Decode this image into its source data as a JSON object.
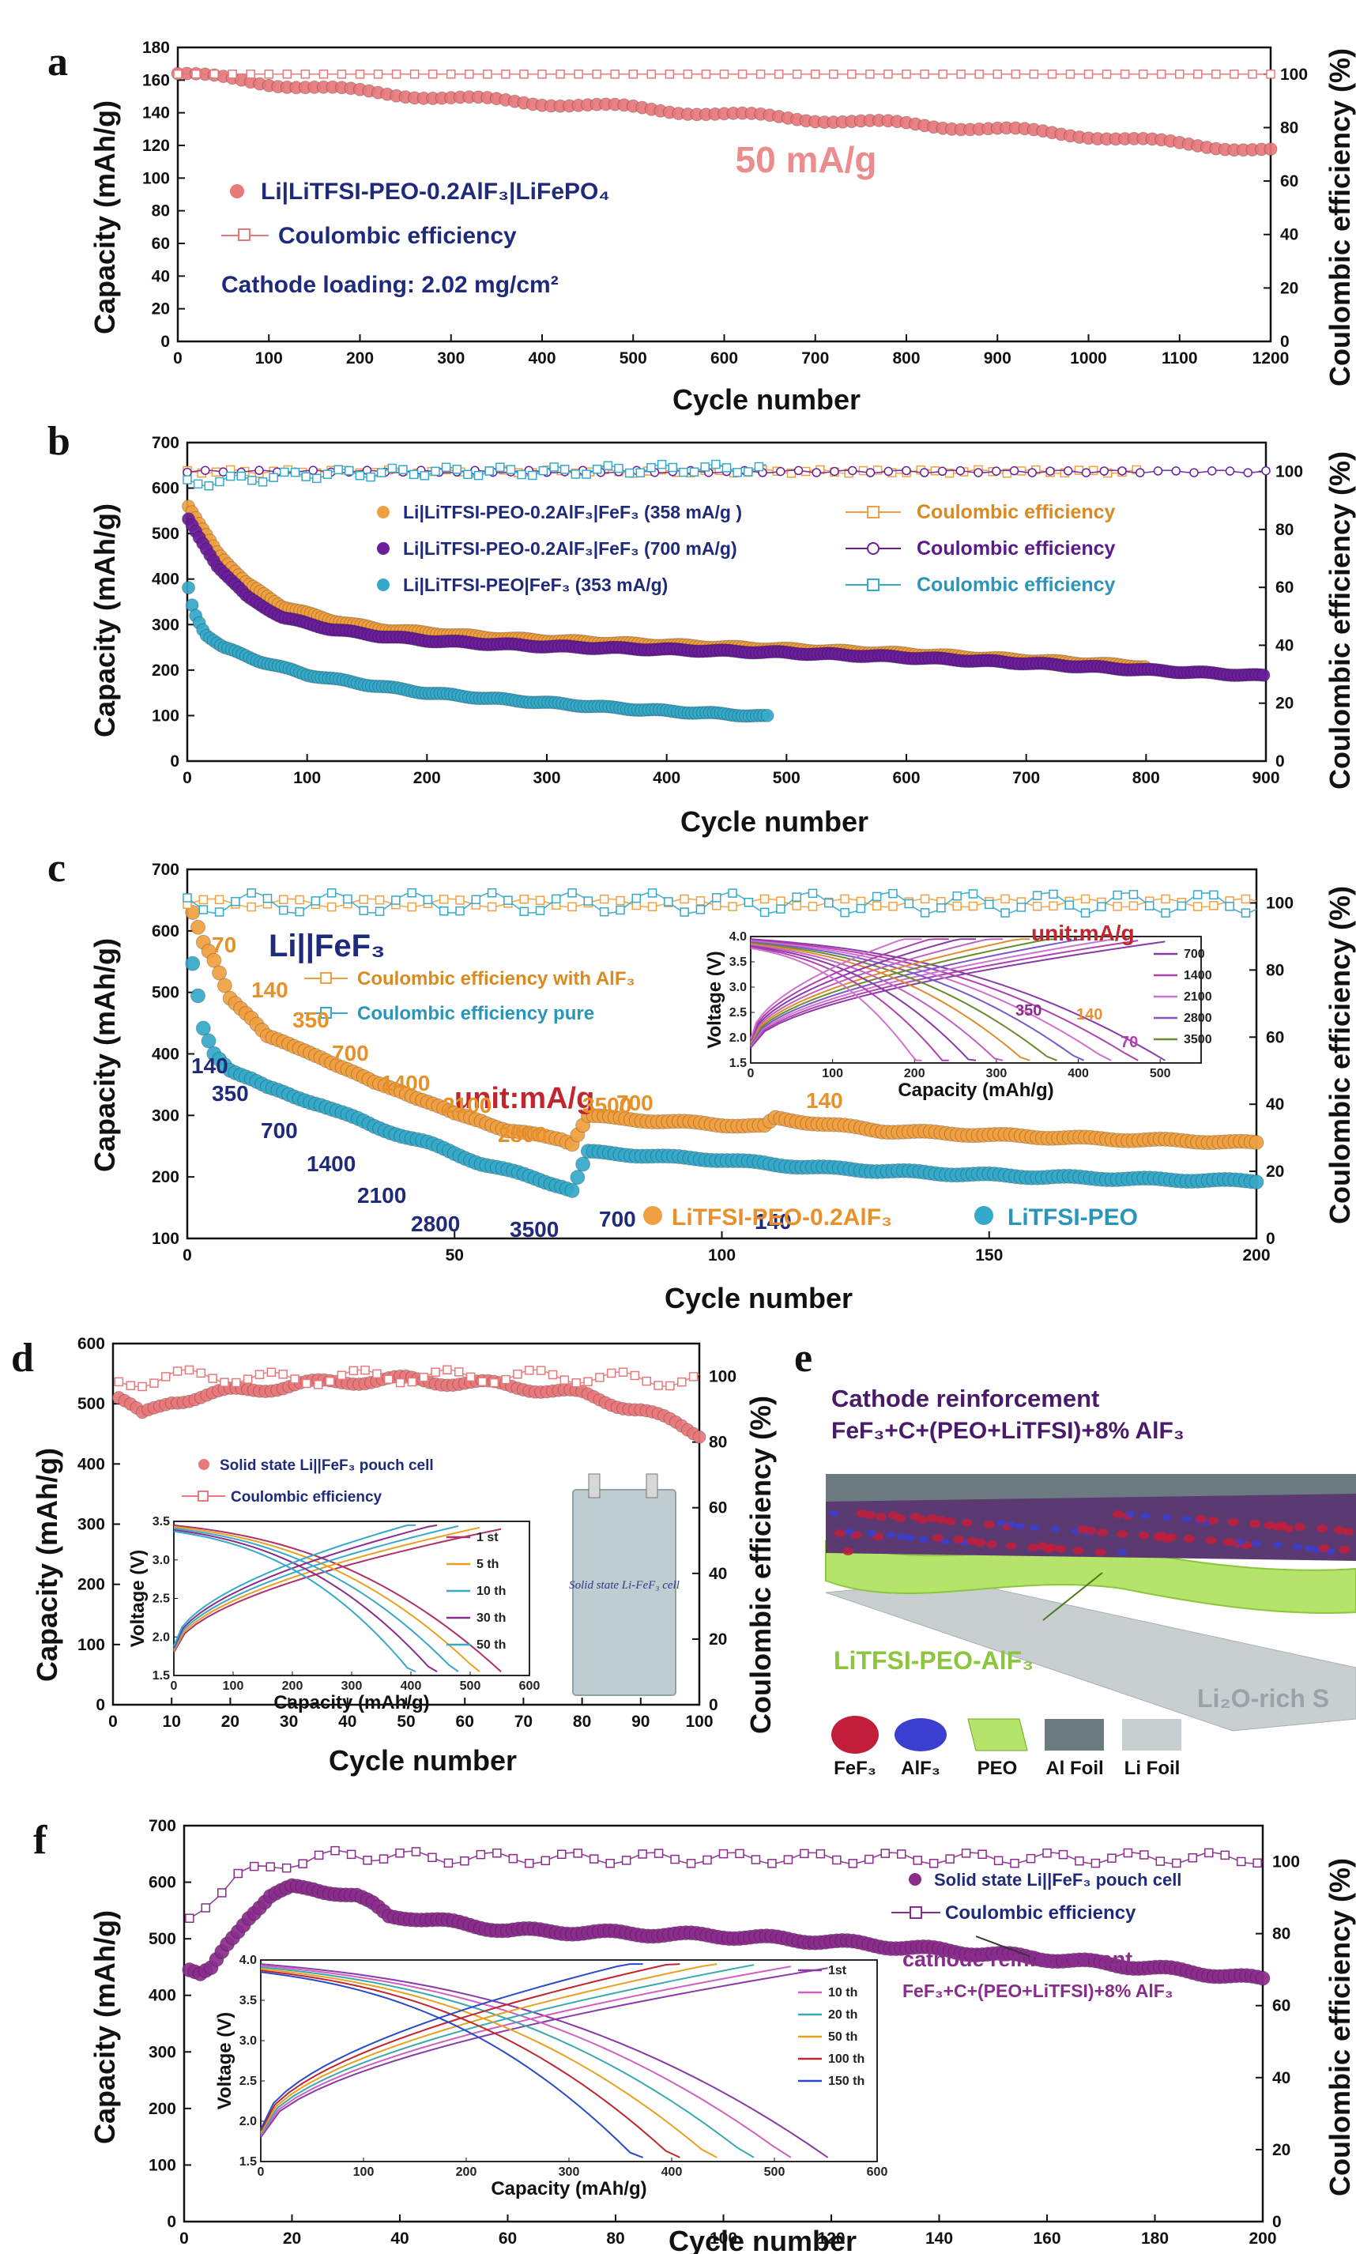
{
  "chart_data": [
    {
      "id": "a",
      "type": "scatter",
      "panel_label": "a",
      "xlabel": "Cycle number",
      "ylabel": "Capacity (mAh/g)",
      "y2label": "Coulombic efficiency (%)",
      "xlim": [
        0,
        1200
      ],
      "ylim": [
        0,
        180
      ],
      "y2lim": [
        0,
        110
      ],
      "xticks": [
        0,
        100,
        200,
        300,
        400,
        500,
        600,
        700,
        800,
        900,
        1000,
        1100,
        1200
      ],
      "yticks": [
        0,
        20,
        40,
        60,
        80,
        100,
        120,
        140,
        160,
        180
      ],
      "y2ticks": [
        0,
        20,
        40,
        60,
        80,
        100
      ],
      "series": [
        {
          "name": "Li|LiTFSI-PEO-0.2AlF₃|LiFePO₄",
          "axis": "left",
          "marker": "filled-circle",
          "color": "#e8787a",
          "x": [
            0,
            100,
            200,
            300,
            400,
            500,
            600,
            700,
            800,
            900,
            1000,
            1100,
            1200
          ],
          "y": [
            164,
            158,
            153,
            149,
            146,
            143,
            139,
            136,
            133,
            130,
            126,
            121,
            117
          ]
        },
        {
          "name": "Coulombic efficiency",
          "axis": "right",
          "marker": "open-square",
          "color": "#e8787a",
          "x": [
            0,
            200,
            400,
            600,
            800,
            1000,
            1200
          ],
          "y": [
            100,
            100,
            100,
            100,
            100,
            100,
            100
          ]
        }
      ],
      "annotations": [
        "50 mA/g",
        "Cathode loading: 2.02 mg/cm²"
      ]
    },
    {
      "id": "b",
      "type": "scatter",
      "panel_label": "b",
      "xlabel": "Cycle number",
      "ylabel": "Capacity (mAh/g)",
      "y2label": "Coulombic efficiency (%)",
      "xlim": [
        0,
        900
      ],
      "ylim": [
        0,
        700
      ],
      "y2lim": [
        0,
        110
      ],
      "xticks": [
        0,
        100,
        200,
        300,
        400,
        500,
        600,
        700,
        800,
        900
      ],
      "yticks": [
        0,
        100,
        200,
        300,
        400,
        500,
        600,
        700
      ],
      "y2ticks": [
        0,
        20,
        40,
        60,
        80,
        100
      ],
      "series": [
        {
          "name": "Li|LiTFSI-PEO-0.2AlF₃|FeF₃ (358 mA/g )",
          "axis": "left",
          "marker": "filled-circle",
          "color": "#f0a040",
          "x": [
            1,
            10,
            25,
            50,
            80,
            120,
            160,
            200,
            250,
            300,
            400,
            500,
            600,
            700,
            800
          ],
          "y": [
            560,
            520,
            460,
            390,
            340,
            310,
            290,
            282,
            272,
            265,
            255,
            246,
            236,
            222,
            208
          ]
        },
        {
          "name": "Li|LiTFSI-PEO-0.2AlF₃|FeF₃ (700 mA/g)",
          "axis": "left",
          "marker": "filled-circle",
          "color": "#6a1e9a",
          "x": [
            1,
            10,
            25,
            50,
            80,
            120,
            160,
            200,
            250,
            300,
            400,
            500,
            600,
            700,
            800,
            900
          ],
          "y": [
            530,
            490,
            430,
            360,
            315,
            290,
            275,
            265,
            258,
            252,
            245,
            238,
            228,
            215,
            200,
            187
          ]
        },
        {
          "name": "Li|LiTFSI-PEO|FeF₃ (353 mA/g)",
          "axis": "left",
          "marker": "filled-circle",
          "color": "#35a9c9",
          "x": [
            1,
            5,
            15,
            30,
            60,
            100,
            150,
            200,
            250,
            300,
            350,
            400,
            450,
            485
          ],
          "y": [
            380,
            330,
            280,
            250,
            220,
            190,
            168,
            150,
            138,
            128,
            118,
            110,
            103,
            98
          ]
        },
        {
          "name": "Coulombic efficiency",
          "axis": "right",
          "marker": "open-square",
          "color": "#f0a040",
          "x": [
            0,
            200,
            400,
            600,
            800
          ],
          "y": [
            100,
            100,
            100,
            100,
            100
          ]
        },
        {
          "name": "Coulombic efficiency",
          "axis": "right",
          "marker": "open-circle",
          "color": "#6a1e9a",
          "x": [
            0,
            200,
            400,
            600,
            800,
            900
          ],
          "y": [
            100,
            100,
            100,
            100,
            100,
            100
          ]
        },
        {
          "name": "Coulombic efficiency",
          "axis": "right",
          "marker": "open-square",
          "color": "#35a9c9",
          "x": [
            0,
            100,
            200,
            300,
            400,
            485
          ],
          "y": [
            96,
            99,
            100,
            100,
            101,
            101
          ]
        }
      ]
    },
    {
      "id": "c",
      "type": "scatter",
      "panel_label": "c",
      "xlabel": "Cycle number",
      "ylabel": "Capacity (mAh/g)",
      "y2label": "Coulombic efficiency (%)",
      "xlim": [
        0,
        200
      ],
      "ylim": [
        100,
        700
      ],
      "y2lim": [
        0,
        110
      ],
      "xticks": [
        0,
        50,
        100,
        150,
        200
      ],
      "yticks": [
        100,
        200,
        300,
        400,
        500,
        600,
        700
      ],
      "y2ticks": [
        0,
        20,
        40,
        60,
        80,
        100
      ],
      "series": [
        {
          "name": "LiTFSI-PEO-0.2AlF₃",
          "axis": "left",
          "marker": "filled-circle",
          "color": "#f0a040",
          "x": [
            1,
            3,
            5,
            8,
            12,
            15,
            20,
            25,
            30,
            35,
            40,
            45,
            50,
            55,
            60,
            65,
            70,
            72,
            75,
            80,
            90,
            100,
            108,
            110,
            120,
            130,
            150,
            170,
            190,
            200
          ],
          "y": [
            630,
            580,
            550,
            490,
            460,
            430,
            410,
            395,
            375,
            352,
            340,
            322,
            302,
            292,
            275,
            268,
            262,
            255,
            300,
            295,
            290,
            285,
            282,
            295,
            285,
            275,
            268,
            262,
            258,
            255
          ]
        },
        {
          "name": "LiTFSI-PEO",
          "axis": "left",
          "marker": "filled-circle",
          "color": "#35a9c9",
          "x": [
            1,
            3,
            5,
            8,
            12,
            15,
            20,
            25,
            30,
            35,
            40,
            45,
            50,
            55,
            60,
            65,
            70,
            72,
            75,
            80,
            90,
            100,
            110,
            120,
            140,
            160,
            180,
            200
          ],
          "y": [
            545,
            440,
            400,
            375,
            360,
            345,
            330,
            318,
            300,
            282,
            268,
            255,
            238,
            222,
            210,
            198,
            185,
            178,
            240,
            238,
            232,
            228,
            220,
            214,
            206,
            200,
            196,
            193
          ]
        },
        {
          "name": "Coulombic efficiency with AlF₃",
          "axis": "right",
          "marker": "open-square",
          "color": "#f0a040",
          "x": [
            0,
            50,
            100,
            150,
            200
          ],
          "y": [
            100,
            100,
            100,
            100,
            100
          ]
        },
        {
          "name": "Coulombic efficiency pure",
          "axis": "right",
          "marker": "open-square",
          "color": "#35a9c9",
          "x": [
            0,
            50,
            100,
            150,
            200
          ],
          "y": [
            100,
            100,
            100,
            100,
            100
          ]
        }
      ],
      "legend_title": "Li||FeF₃",
      "rate_labels_orange": [
        "70",
        "140",
        "350",
        "700",
        "1400",
        "2100",
        "2800",
        "3500",
        "700",
        "140"
      ],
      "rate_labels_blue": [
        "140",
        "350",
        "700",
        "1400",
        "2100",
        "2800",
        "3500",
        "700",
        "140"
      ],
      "unit_label": "unit:mA/g",
      "inset": {
        "xlabel": "Capacity (mAh/g)",
        "ylabel": "Voltage (V)",
        "xlim": [
          0,
          550
        ],
        "ylim": [
          1.5,
          4.0
        ],
        "xticks": [
          0,
          100,
          200,
          300,
          400,
          500
        ],
        "yticks": [
          1.5,
          2.0,
          2.5,
          3.0,
          3.5,
          4.0
        ],
        "unit_label": "unit:mA/g",
        "legend": [
          "700",
          "1400",
          "2100",
          "2800",
          "3500"
        ],
        "rate_notes": [
          "350",
          "140",
          "70"
        ]
      }
    },
    {
      "id": "d",
      "type": "scatter",
      "panel_label": "d",
      "xlabel": "Cycle number",
      "ylabel": "Capacity (mAh/g)",
      "y2label": "Coulombic efficiency (%)",
      "xlim": [
        0,
        100
      ],
      "ylim": [
        0,
        600
      ],
      "y2lim": [
        0,
        110
      ],
      "xticks": [
        0,
        10,
        20,
        30,
        40,
        50,
        60,
        70,
        80,
        90,
        100
      ],
      "yticks": [
        0,
        100,
        200,
        300,
        400,
        500,
        600
      ],
      "y2ticks": [
        0,
        20,
        40,
        60,
        80,
        100
      ],
      "series": [
        {
          "name": "Solid state Li||FeF₃ pouch cell",
          "axis": "left",
          "marker": "filled-circle",
          "color": "#e8787a",
          "x": [
            1,
            5,
            10,
            20,
            30,
            40,
            50,
            60,
            70,
            80,
            90,
            95,
            100
          ],
          "y": [
            510,
            480,
            505,
            520,
            530,
            538,
            540,
            535,
            528,
            515,
            490,
            470,
            450
          ]
        },
        {
          "name": "Coulombic efficiency",
          "axis": "right",
          "marker": "open-square",
          "color": "#e8787a",
          "x": [
            1,
            10,
            20,
            30,
            40,
            50,
            60,
            70,
            80,
            90,
            100
          ],
          "y": [
            98,
            100,
            100,
            99,
            100,
            100,
            100,
            100,
            100,
            99,
            99
          ]
        }
      ],
      "inset": {
        "xlabel": "Capacity (mAh/g)",
        "ylabel": "Voltage (V)",
        "xlim": [
          0,
          600
        ],
        "ylim": [
          1.5,
          3.5
        ],
        "xticks": [
          0,
          100,
          200,
          300,
          400,
          500,
          600
        ],
        "yticks": [
          1.5,
          2.0,
          2.5,
          3.0,
          3.5
        ],
        "legend": [
          "1 st",
          "5 th",
          "10 th",
          "30 th",
          "50 th"
        ],
        "photo_text": "Solid state Li-FeF₃ cell"
      }
    },
    {
      "id": "f",
      "type": "scatter",
      "panel_label": "f",
      "xlabel": "Cycle number",
      "ylabel": "Capacity (mAh/g)",
      "y2label": "Coulombic efficiency (%)",
      "xlim": [
        0,
        200
      ],
      "ylim": [
        0,
        700
      ],
      "y2lim": [
        0,
        110
      ],
      "xticks": [
        0,
        20,
        40,
        60,
        80,
        100,
        120,
        140,
        160,
        180,
        200
      ],
      "yticks": [
        0,
        100,
        200,
        300,
        400,
        500,
        600,
        700
      ],
      "y2ticks": [
        0,
        20,
        40,
        60,
        80,
        100
      ],
      "series": [
        {
          "name": "Solid state Li||FeF₃ pouch cell",
          "axis": "left",
          "marker": "filled-circle",
          "color": "#8a2c8c",
          "x": [
            1,
            3,
            5,
            8,
            12,
            16,
            20,
            24,
            28,
            32,
            35,
            38,
            42,
            50,
            60,
            80,
            100,
            120,
            140,
            160,
            180,
            200
          ],
          "y": [
            445,
            435,
            445,
            490,
            540,
            575,
            590,
            588,
            582,
            575,
            560,
            540,
            538,
            528,
            515,
            510,
            505,
            495,
            480,
            465,
            448,
            428
          ]
        },
        {
          "name": "Coulombic efficiency",
          "axis": "right",
          "marker": "open-square",
          "color": "#8a2c8c",
          "x": [
            1,
            5,
            10,
            20,
            30,
            50,
            80,
            100,
            130,
            160,
            200
          ],
          "y": [
            84,
            90,
            96,
            100,
            102,
            101,
            101,
            101,
            101,
            101,
            101
          ]
        }
      ],
      "annotations": [
        "cathode reinforcement",
        "FeF₃+C+(PEO+LiTFSI)+8% AlF₃"
      ],
      "inset": {
        "xlabel": "Capacity (mAh/g)",
        "ylabel": "Voltage (V)",
        "xlim": [
          0,
          600
        ],
        "ylim": [
          1.5,
          4.0
        ],
        "xticks": [
          0,
          100,
          200,
          300,
          400,
          500,
          600
        ],
        "yticks": [
          1.5,
          2.0,
          2.5,
          3.0,
          3.5,
          4.0
        ],
        "legend": [
          "1st",
          "10 th",
          "20 th",
          "50 th",
          "100 th",
          "150 th"
        ]
      }
    }
  ],
  "schematic_e": {
    "panel_label": "e",
    "title_line1": "Cathode reinforcement",
    "title_line2": "FeF₃+C+(PEO+LiTFSI)+8% AlF₃",
    "electrolyte_label": "LiTFSI-PEO-AlF₃",
    "interphase_label": "Li₂O-rich S",
    "legend": [
      "FeF₃",
      "AlF₃",
      "PEO",
      "Al Foil",
      "Li Foil"
    ]
  }
}
